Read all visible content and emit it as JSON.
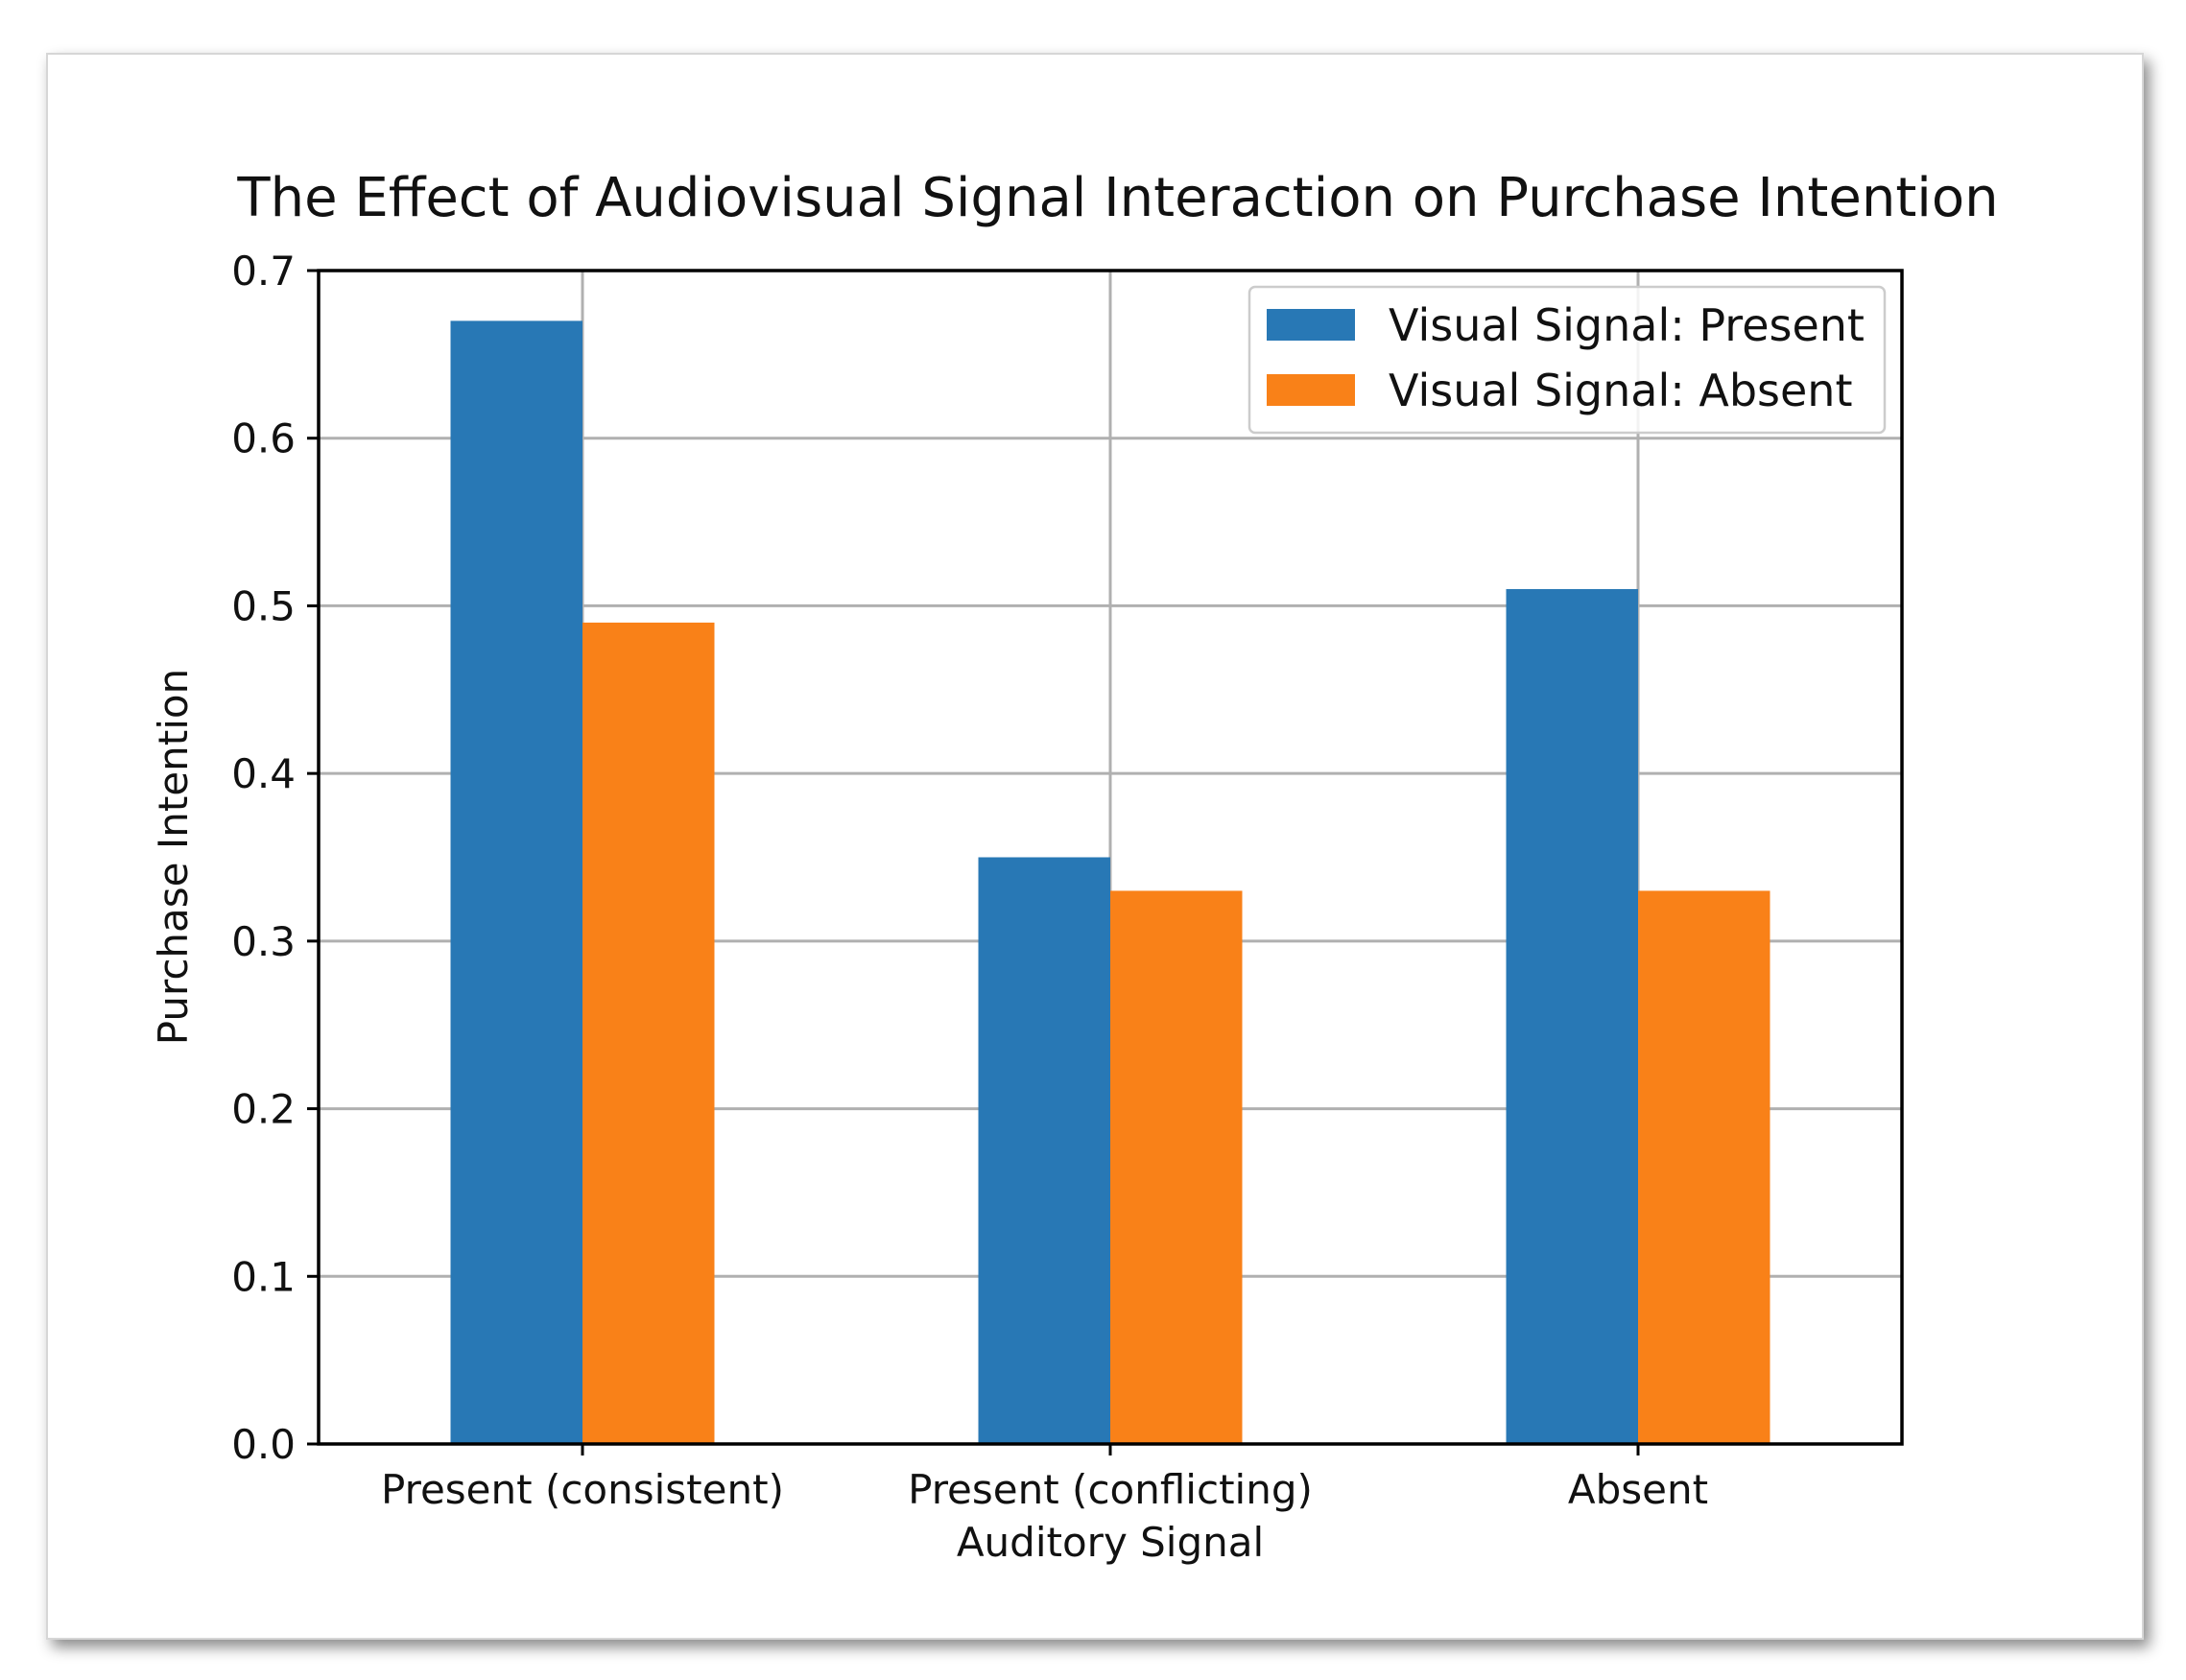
{
  "chart_data": {
    "type": "bar",
    "title": "The Effect of Audiovisual Signal Interaction on Purchase Intention",
    "xlabel": "Auditory Signal",
    "ylabel": "Purchase Intention",
    "categories": [
      "Present (consistent)",
      "Present (conflicting)",
      "Absent"
    ],
    "series": [
      {
        "name": "Visual Signal: Present",
        "values": [
          0.67,
          0.35,
          0.51
        ],
        "color": "#2878b5"
      },
      {
        "name": "Visual Signal: Absent",
        "values": [
          0.49,
          0.33,
          0.33
        ],
        "color": "#f98118"
      }
    ],
    "ylim": [
      0,
      0.7
    ],
    "yticks": [
      "0.0",
      "0.1",
      "0.2",
      "0.3",
      "0.4",
      "0.5",
      "0.6",
      "0.7"
    ],
    "grid": true,
    "legend_position": "top-right"
  }
}
